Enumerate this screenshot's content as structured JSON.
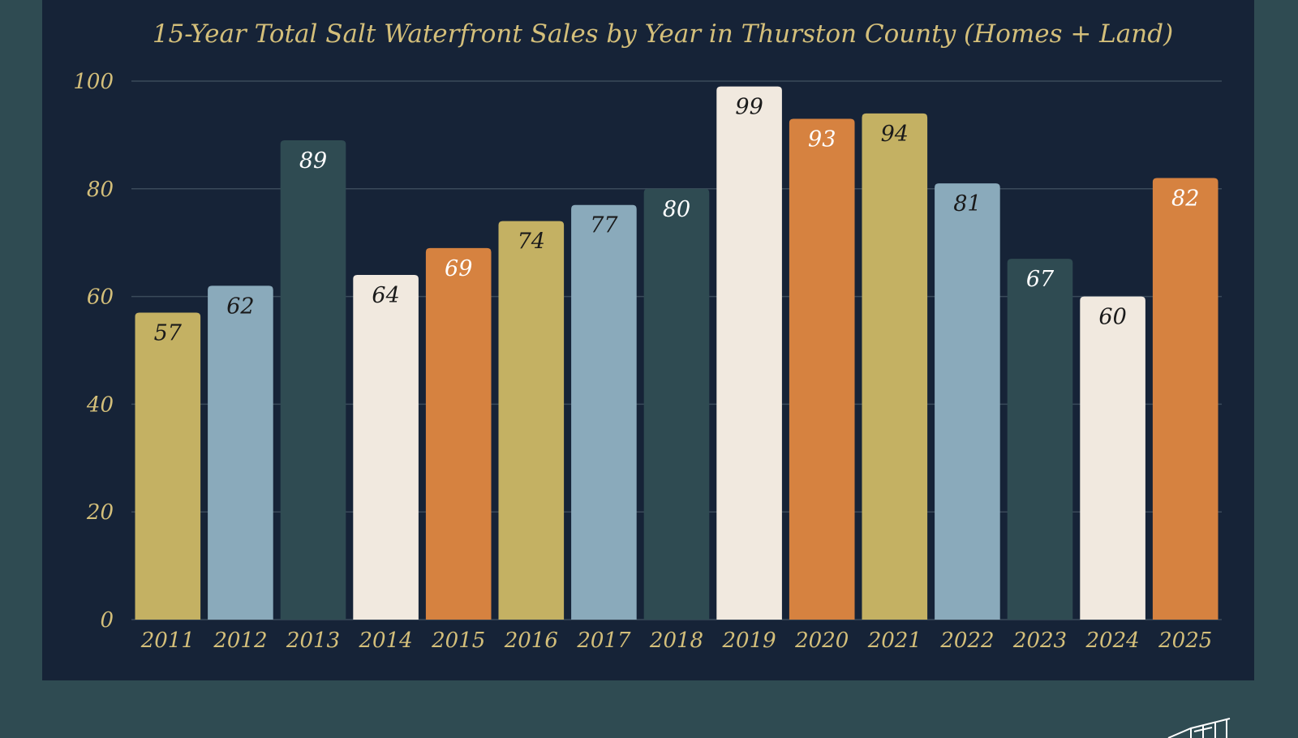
{
  "chart_data": {
    "type": "bar",
    "title": "15-Year Total Salt Waterfront Sales by Year in Thurston County (Homes + Land)",
    "xlabel": "",
    "ylabel": "",
    "categories": [
      "2011",
      "2012",
      "2013",
      "2014",
      "2015",
      "2016",
      "2017",
      "2018",
      "2019",
      "2020",
      "2021",
      "2022",
      "2023",
      "2024",
      "2025"
    ],
    "values": [
      57,
      62,
      89,
      64,
      69,
      74,
      77,
      80,
      99,
      93,
      94,
      81,
      67,
      60,
      82
    ],
    "ylim": [
      0,
      100
    ],
    "yticks": [
      0,
      20,
      40,
      60,
      80,
      100
    ],
    "grid": true,
    "legend": "none",
    "data_labels": true,
    "bar_colors": [
      "#c4b163",
      "#8aaabb",
      "#2f4b52",
      "#f1e9df",
      "#d68240",
      "#c4b163",
      "#8aaabb",
      "#2f4b52",
      "#f1e9df",
      "#d68240",
      "#c4b163",
      "#8aaabb",
      "#2f4b52",
      "#f1e9df",
      "#d68240"
    ],
    "label_colors": [
      "#1a1a1a",
      "#1a1a1a",
      "#ffffff",
      "#1a1a1a",
      "#ffffff",
      "#1a1a1a",
      "#1a1a1a",
      "#ffffff",
      "#1a1a1a",
      "#ffffff",
      "#1a1a1a",
      "#1a1a1a",
      "#ffffff",
      "#1a1a1a",
      "#ffffff"
    ]
  },
  "colors": {
    "page_background": "#2f4b52",
    "panel_background": "#162337",
    "title_color": "#d4bf7a",
    "tick_color": "#d4bf7a",
    "grid_color": "#3a4a5a"
  },
  "icons": [
    "logo-mark-icon"
  ]
}
